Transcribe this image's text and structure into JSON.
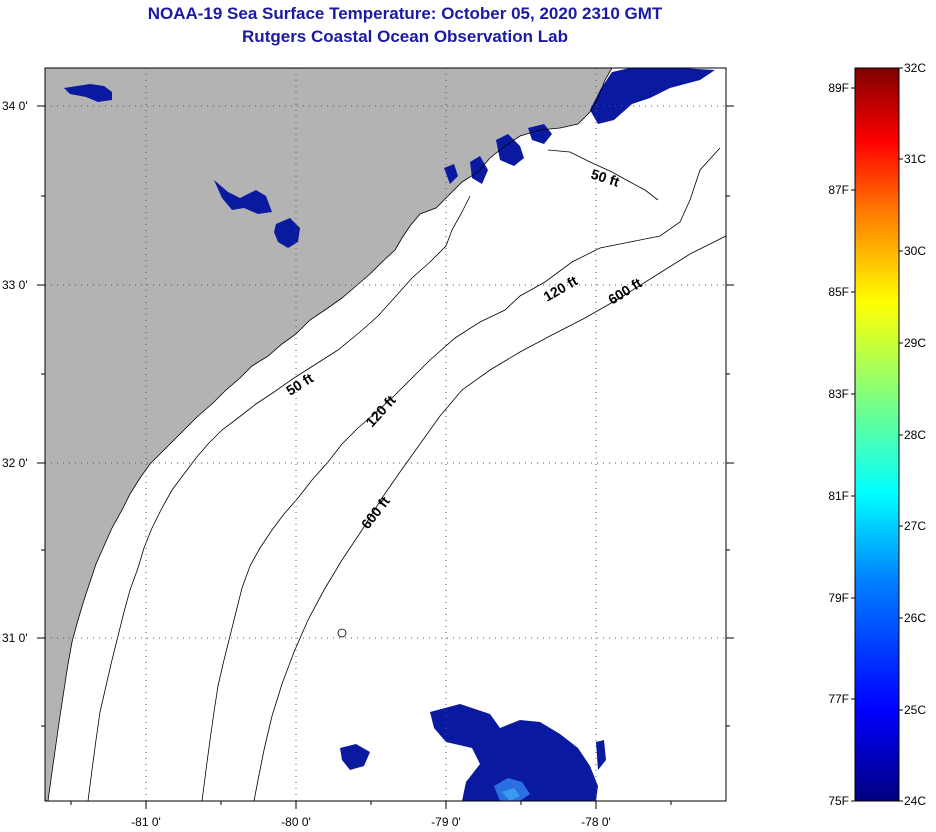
{
  "header": {
    "title": "NOAA-19 Sea Surface Temperature:  October 05, 2020 2310 GMT",
    "subtitle": "Rutgers Coastal Ocean Observation Lab"
  },
  "map": {
    "lon_ticks": [
      "-81 0'",
      "-80 0'",
      "-79 0'",
      "-78 0'"
    ],
    "lat_ticks": [
      "34 0'",
      "33 0'",
      "32 0'",
      "31 0'"
    ],
    "contours": [
      "50 ft",
      "50 ft",
      "120 ft",
      "120 ft",
      "600 ft",
      "600 ft"
    ],
    "colors": {
      "land": "#b3b3b3",
      "cloud_free_sea": "#ffffff",
      "cold_pixels": "#0a1aa0",
      "coastline": "#000000"
    }
  },
  "colorbar": {
    "fahrenheit_labels": [
      "89F",
      "87F",
      "85F",
      "83F",
      "81F",
      "79F",
      "77F",
      "75F"
    ],
    "celsius_labels": [
      "32C",
      "31C",
      "30C",
      "29C",
      "28C",
      "27C",
      "26C",
      "25C",
      "24C"
    ],
    "range_c": [
      24,
      32
    ],
    "colors": [
      "#00007f",
      "#0000ff",
      "#007fff",
      "#00ffff",
      "#7fff7f",
      "#ffff00",
      "#ff7f00",
      "#ff0000",
      "#7f0000"
    ]
  }
}
